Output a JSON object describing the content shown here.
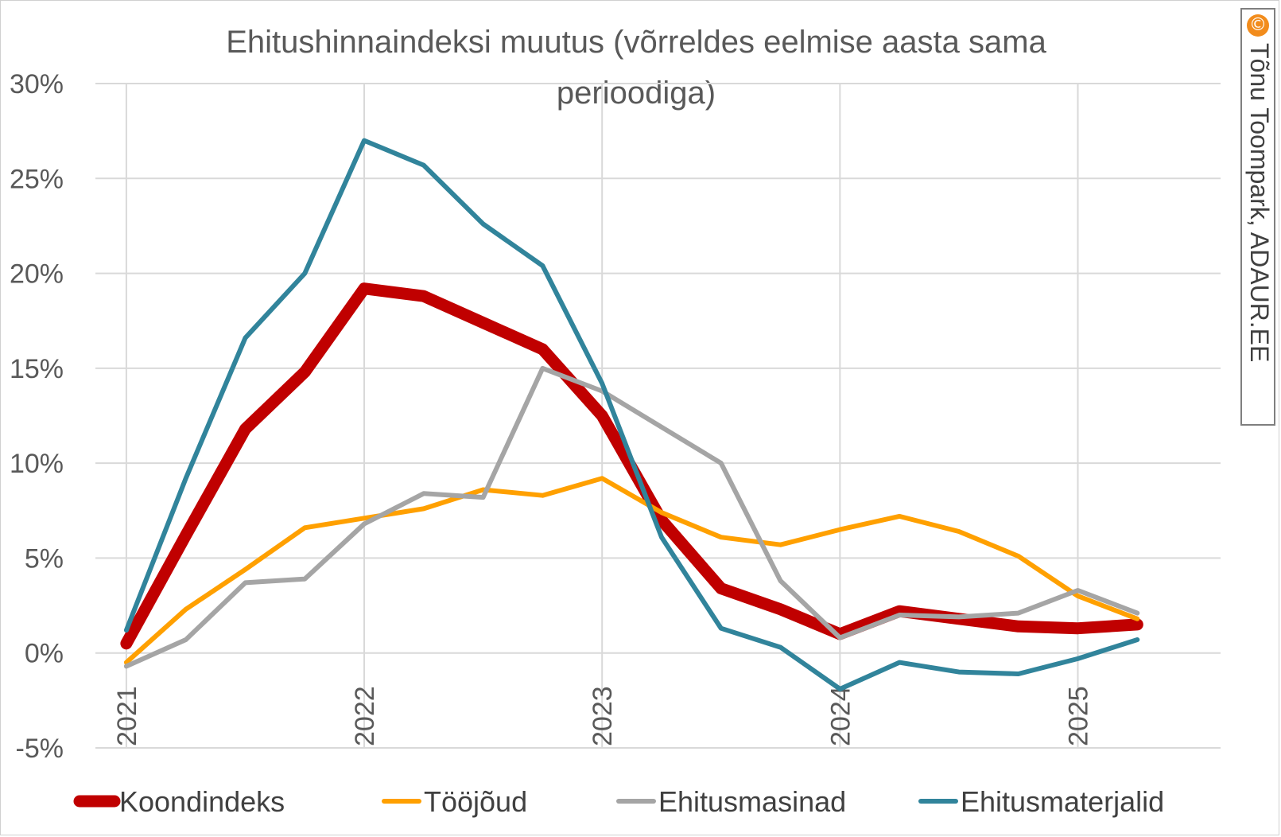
{
  "chart_data": {
    "type": "line",
    "title": "Ehitushinnaindeksi muutus (võrreldes eelmise aasta sama perioodiga)",
    "title_lines": [
      "Ehitushinnaindeksi muutus (võrreldes eelmise aasta sama",
      "perioodiga)"
    ],
    "xlabel": "",
    "ylabel": "",
    "x": [
      2021.0,
      2021.25,
      2021.5,
      2021.75,
      2022.0,
      2022.25,
      2022.5,
      2022.75,
      2023.0,
      2023.25,
      2023.5,
      2023.75,
      2024.0,
      2024.25,
      2024.5,
      2024.75,
      2025.0,
      2025.25
    ],
    "x_ticks": [
      {
        "value": 2021,
        "label": "2021"
      },
      {
        "value": 2022,
        "label": "2022"
      },
      {
        "value": 2023,
        "label": "2023"
      },
      {
        "value": 2024,
        "label": "2024"
      },
      {
        "value": 2025,
        "label": "2025"
      }
    ],
    "xlim": [
      2020.87,
      2025.6
    ],
    "y_ticks": [
      {
        "value": 30,
        "label": "30%"
      },
      {
        "value": 25,
        "label": "25%"
      },
      {
        "value": 20,
        "label": "20%"
      },
      {
        "value": 15,
        "label": "15%"
      },
      {
        "value": 10,
        "label": "10%"
      },
      {
        "value": 5,
        "label": "5%"
      },
      {
        "value": 0,
        "label": "0%"
      },
      {
        "value": -5,
        "label": "-5%"
      }
    ],
    "ylim": [
      -5,
      30
    ],
    "grid": true,
    "legend_position": "bottom",
    "series": [
      {
        "name": "Koondindeks",
        "color": "#c00000",
        "width": "thick",
        "values": [
          0.5,
          6.2,
          11.8,
          14.8,
          19.2,
          18.8,
          17.4,
          16.0,
          12.5,
          7.0,
          3.4,
          2.3,
          1.0,
          2.2,
          1.8,
          1.4,
          1.3,
          1.5
        ]
      },
      {
        "name": "Tööjõud",
        "color": "#ffa000",
        "width": "normal",
        "values": [
          -0.5,
          2.3,
          4.4,
          6.6,
          7.1,
          7.6,
          8.6,
          8.3,
          9.2,
          7.4,
          6.1,
          5.7,
          6.5,
          7.2,
          6.4,
          5.1,
          3.0,
          1.8
        ]
      },
      {
        "name": "Ehitusmasinad",
        "color": "#a5a5a5",
        "width": "normal",
        "values": [
          -0.7,
          0.7,
          3.7,
          3.9,
          6.8,
          8.4,
          8.2,
          15.0,
          13.8,
          11.9,
          10.0,
          3.8,
          0.8,
          2.0,
          1.9,
          2.1,
          3.3,
          2.1
        ]
      },
      {
        "name": "Ehitusmaterjalid",
        "color": "#31849b",
        "width": "normal",
        "values": [
          1.2,
          9.2,
          16.6,
          20.0,
          27.0,
          25.7,
          22.6,
          20.4,
          14.2,
          6.1,
          1.3,
          0.3,
          -1.9,
          -0.5,
          -1.0,
          -1.1,
          -0.3,
          0.7
        ]
      }
    ]
  },
  "watermark": {
    "symbol": "©",
    "text": "Tõnu Toompark, ADAUR.EE"
  }
}
